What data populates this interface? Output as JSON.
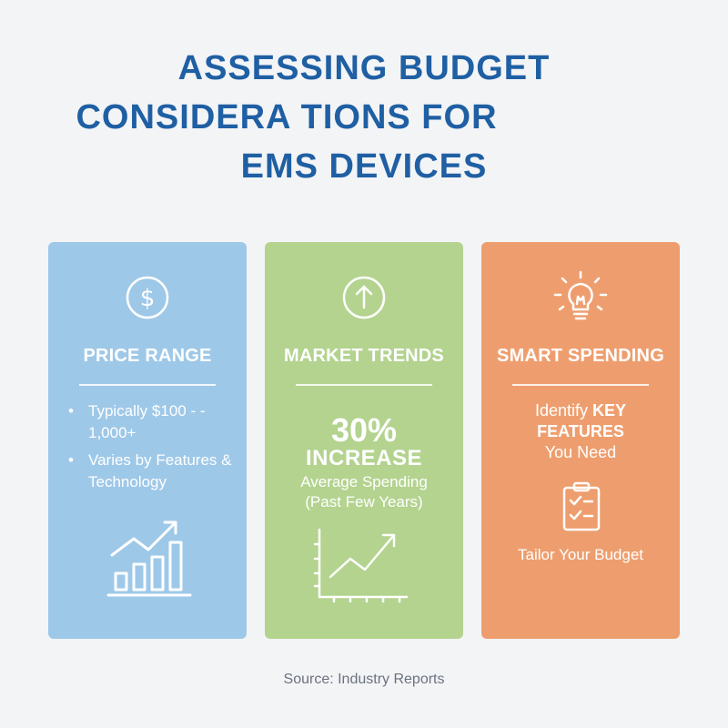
{
  "title": {
    "line1": "ASSESSING BUDGET",
    "line2": "CONSIDERA TIONS FOR",
    "line3": "EMS DEVICES"
  },
  "colors": {
    "title": "#1f5fa3",
    "blue_card": "#9ec8e8",
    "green_card": "#b3d38f",
    "orange_card": "#ee9e6e",
    "background": "#f3f4f6"
  },
  "cards": {
    "price_range": {
      "icon": "dollar-circle-icon",
      "heading": "PRICE RANGE",
      "bullets": [
        "Typically $100 - - 1,000+",
        "Varies by Features & Technology"
      ],
      "illustration": "bar-chart-growth-icon"
    },
    "market_trends": {
      "icon": "arrow-up-circle-icon",
      "heading": "MARKET TRENDS",
      "percent": "30%",
      "increase": "INCREASE",
      "sub_line1": "Average Spending",
      "sub_line2": "(Past Few Years)",
      "illustration": "line-chart-icon"
    },
    "smart_spending": {
      "icon": "lightbulb-icon",
      "heading": "SMART SPENDING",
      "line1_pre": "Identify",
      "line1_kw": "KEY",
      "line2_kw": "FEATURES",
      "line3": "You Need",
      "illustration": "checklist-clipboard-icon",
      "footer": "Tailor Your Budget"
    }
  },
  "source": "Source: Industry Reports"
}
